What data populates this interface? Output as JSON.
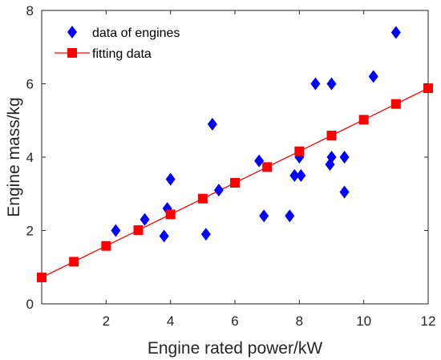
{
  "chart_data": {
    "type": "scatter",
    "xlabel": "Engine rated power/kW",
    "ylabel": "Engine mass/kg",
    "xlim": [
      0,
      12
    ],
    "ylim": [
      0,
      8
    ],
    "xticks": [
      2,
      4,
      6,
      8,
      10,
      12
    ],
    "yticks": [
      0,
      2,
      4,
      6,
      8
    ],
    "grid": false,
    "legend_position": "top-left",
    "series": [
      {
        "name": "data of engines",
        "marker": "diamond",
        "color": "#0000ff",
        "points": [
          [
            2.3,
            2.0
          ],
          [
            3.2,
            2.3
          ],
          [
            3.8,
            1.85
          ],
          [
            3.9,
            2.6
          ],
          [
            4.0,
            3.4
          ],
          [
            5.1,
            1.9
          ],
          [
            5.3,
            4.9
          ],
          [
            5.5,
            3.1
          ],
          [
            6.75,
            3.9
          ],
          [
            6.9,
            2.4
          ],
          [
            7.7,
            2.4
          ],
          [
            7.85,
            3.5
          ],
          [
            8.0,
            4.0
          ],
          [
            8.05,
            3.5
          ],
          [
            8.5,
            6.0
          ],
          [
            9.0,
            6.0
          ],
          [
            8.95,
            3.8
          ],
          [
            9.0,
            4.0
          ],
          [
            9.4,
            4.0
          ],
          [
            9.4,
            3.05
          ],
          [
            10.3,
            6.2
          ],
          [
            11.0,
            7.4
          ]
        ]
      },
      {
        "name": "fitting data",
        "marker": "square",
        "line": true,
        "color": "#ff0000",
        "points": [
          [
            0,
            0.72
          ],
          [
            1,
            1.15
          ],
          [
            2,
            1.58
          ],
          [
            3,
            2.01
          ],
          [
            4,
            2.44
          ],
          [
            5,
            2.87
          ],
          [
            6,
            3.3
          ],
          [
            7,
            3.73
          ],
          [
            8,
            4.16
          ],
          [
            9,
            4.59
          ],
          [
            10,
            5.02
          ],
          [
            11,
            5.45
          ],
          [
            12,
            5.88
          ]
        ]
      }
    ]
  }
}
